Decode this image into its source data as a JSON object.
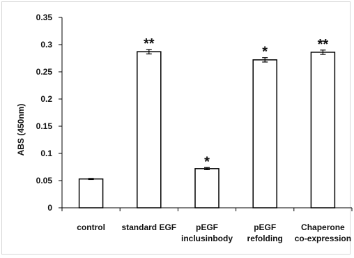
{
  "chart_data": {
    "type": "bar",
    "title": "",
    "xlabel": "",
    "ylabel": "ABS (450nm)",
    "ylim": [
      0,
      0.35
    ],
    "yticks": [
      "0",
      "0.05",
      "0.1",
      "0.15",
      "0.2",
      "0.25",
      "0.3",
      "0.35"
    ],
    "categories": [
      [
        "control"
      ],
      [
        "standard EGF"
      ],
      [
        "pEGF",
        "inclusinbody"
      ],
      [
        "pEGF",
        "refolding"
      ],
      [
        "Chaperone",
        "co-expression"
      ]
    ],
    "values": [
      0.053,
      0.287,
      0.072,
      0.272,
      0.286
    ],
    "errors": [
      0.001,
      0.004,
      0.002,
      0.004,
      0.004
    ],
    "significance": [
      "",
      "**",
      "*",
      "*",
      "**"
    ],
    "grid": false,
    "legend": "none",
    "colors": {
      "bar_fill": "#ffffff",
      "bar_stroke": "#000000",
      "axis": "#000000"
    }
  }
}
